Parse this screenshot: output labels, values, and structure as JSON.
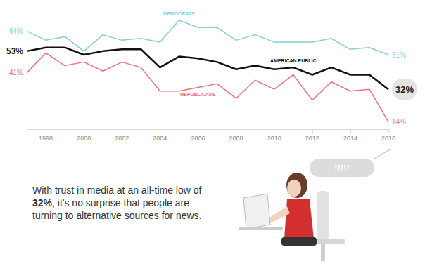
{
  "chart_data": {
    "type": "line",
    "x": [
      1997,
      1998,
      1999,
      2000,
      2001,
      2002,
      2003,
      2004,
      2005,
      2006,
      2007,
      2008,
      2009,
      2010,
      2011,
      2012,
      2013,
      2014,
      2015,
      2016
    ],
    "xlim": [
      1997,
      2016
    ],
    "xticks": [
      1998,
      2000,
      2002,
      2004,
      2006,
      2008,
      2010,
      2012,
      2014,
      2016
    ],
    "ylim": [
      10,
      75
    ],
    "tick_labels": "x",
    "grid": false,
    "series": [
      {
        "name": "DEMOCRATS",
        "color": "#86cdd9",
        "values": [
          64,
          59,
          61,
          53,
          62,
          59,
          60,
          58,
          70,
          66,
          66,
          59,
          62,
          58,
          58,
          58,
          60,
          54,
          55,
          51
        ],
        "value_labels": [
          "64%",
          null,
          null,
          null,
          null,
          null,
          null,
          null,
          null,
          null,
          null,
          null,
          null,
          null,
          null,
          null,
          null,
          null,
          null,
          "51%"
        ]
      },
      {
        "name": "AMERICAN PUBLIC",
        "color": "#111111",
        "values": [
          53,
          55,
          55,
          51,
          53,
          54,
          54,
          44,
          50,
          49,
          47,
          43,
          45,
          43,
          44,
          40,
          44,
          40,
          40,
          32
        ],
        "value_labels": [
          "53%",
          null,
          null,
          null,
          null,
          null,
          null,
          null,
          null,
          null,
          null,
          null,
          null,
          null,
          null,
          null,
          null,
          null,
          null,
          "32%"
        ]
      },
      {
        "name": "REPUBLICANS",
        "color": "#e8747f",
        "values": [
          41,
          52,
          45,
          47,
          42,
          47,
          44,
          31,
          31,
          33,
          35,
          27,
          37,
          32,
          40,
          26,
          36,
          31,
          32,
          14
        ],
        "value_labels": [
          "41%",
          null,
          null,
          null,
          null,
          null,
          null,
          null,
          null,
          null,
          null,
          null,
          null,
          null,
          null,
          null,
          null,
          null,
          null,
          "14%"
        ]
      }
    ],
    "annotation": [
      "With trust in media at an all-time low of ",
      "32%",
      ", it's no surprise that people are turning to alternative sources for news."
    ],
    "bubble_text": "!!!!!"
  }
}
